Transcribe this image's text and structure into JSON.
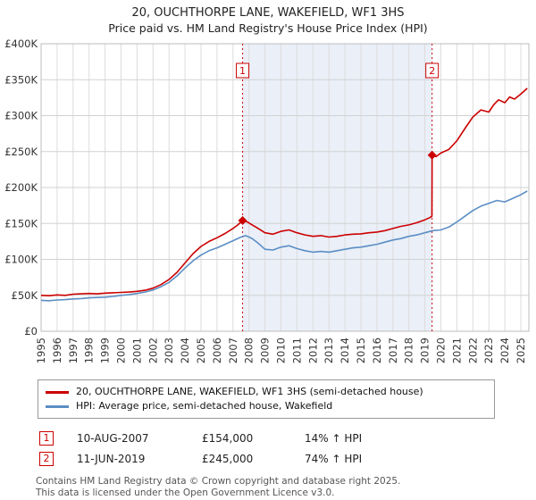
{
  "title": "20, OUCHTHORPE LANE, WAKEFIELD, WF1 3HS",
  "subtitle": "Price paid vs. HM Land Registry's House Price Index (HPI)",
  "chart_data": {
    "type": "line",
    "title": "20, OUCHTHORPE LANE, WAKEFIELD, WF1 3HS — Price paid vs. HPI",
    "x_axis": {
      "min": 1995,
      "max": 2025.5,
      "tick_years": [
        1995,
        1996,
        1997,
        1998,
        1999,
        2000,
        2001,
        2002,
        2003,
        2004,
        2005,
        2006,
        2007,
        2008,
        2009,
        2010,
        2011,
        2012,
        2013,
        2014,
        2015,
        2016,
        2017,
        2018,
        2019,
        2020,
        2021,
        2022,
        2023,
        2024,
        2025
      ]
    },
    "y_axis": {
      "min": 0,
      "max": 400000,
      "tick_step": 50000,
      "tick_labels": [
        "£0",
        "£50K",
        "£100K",
        "£150K",
        "£200K",
        "£250K",
        "£300K",
        "£350K",
        "£400K"
      ]
    },
    "shaded_region": {
      "from": 2007.6,
      "to": 2019.45,
      "color": "#eaeff8"
    },
    "series": [
      {
        "name": "20, OUCHTHORPE LANE, WAKEFIELD, WF1 3HS (semi-detached house)",
        "color": "#cc0000",
        "points": [
          [
            1995.0,
            50000
          ],
          [
            1995.5,
            49500
          ],
          [
            1996.0,
            50500
          ],
          [
            1996.5,
            50000
          ],
          [
            1997.0,
            51500
          ],
          [
            1997.5,
            52000
          ],
          [
            1998.0,
            52500
          ],
          [
            1998.5,
            52000
          ],
          [
            1999.0,
            53000
          ],
          [
            1999.5,
            53500
          ],
          [
            2000.0,
            54000
          ],
          [
            2000.5,
            54500
          ],
          [
            2001.0,
            55500
          ],
          [
            2001.5,
            57000
          ],
          [
            2002.0,
            60000
          ],
          [
            2002.5,
            65000
          ],
          [
            2003.0,
            72000
          ],
          [
            2003.5,
            82000
          ],
          [
            2004.0,
            95000
          ],
          [
            2004.5,
            108000
          ],
          [
            2005.0,
            118000
          ],
          [
            2005.5,
            125000
          ],
          [
            2006.0,
            130000
          ],
          [
            2006.5,
            136000
          ],
          [
            2007.0,
            143000
          ],
          [
            2007.3,
            148000
          ],
          [
            2007.6,
            154000
          ],
          [
            2007.9,
            152000
          ],
          [
            2008.2,
            148000
          ],
          [
            2008.5,
            144000
          ],
          [
            2009.0,
            137000
          ],
          [
            2009.5,
            135000
          ],
          [
            2010.0,
            139000
          ],
          [
            2010.5,
            141000
          ],
          [
            2011.0,
            137000
          ],
          [
            2011.5,
            134000
          ],
          [
            2012.0,
            132000
          ],
          [
            2012.5,
            133000
          ],
          [
            2013.0,
            131000
          ],
          [
            2013.5,
            132000
          ],
          [
            2014.0,
            134000
          ],
          [
            2014.5,
            135000
          ],
          [
            2015.0,
            135500
          ],
          [
            2015.5,
            137000
          ],
          [
            2016.0,
            138000
          ],
          [
            2016.5,
            140000
          ],
          [
            2017.0,
            143000
          ],
          [
            2017.5,
            146000
          ],
          [
            2018.0,
            148000
          ],
          [
            2018.5,
            151000
          ],
          [
            2019.0,
            155000
          ],
          [
            2019.3,
            158000
          ],
          [
            2019.44,
            160000
          ],
          [
            2019.45,
            245000
          ],
          [
            2019.7,
            243000
          ],
          [
            2020.0,
            248000
          ],
          [
            2020.5,
            253000
          ],
          [
            2021.0,
            265000
          ],
          [
            2021.5,
            282000
          ],
          [
            2022.0,
            298000
          ],
          [
            2022.5,
            308000
          ],
          [
            2023.0,
            305000
          ],
          [
            2023.3,
            315000
          ],
          [
            2023.6,
            322000
          ],
          [
            2024.0,
            318000
          ],
          [
            2024.3,
            326000
          ],
          [
            2024.6,
            323000
          ],
          [
            2025.0,
            330000
          ],
          [
            2025.4,
            338000
          ]
        ]
      },
      {
        "name": "HPI: Average price, semi-detached house, Wakefield",
        "color": "#5b8ec4",
        "points": [
          [
            1995.0,
            43000
          ],
          [
            1995.5,
            42500
          ],
          [
            1996.0,
            43500
          ],
          [
            1996.5,
            44000
          ],
          [
            1997.0,
            45000
          ],
          [
            1997.5,
            45500
          ],
          [
            1998.0,
            46500
          ],
          [
            1998.5,
            47000
          ],
          [
            1999.0,
            47500
          ],
          [
            1999.5,
            48500
          ],
          [
            2000.0,
            50000
          ],
          [
            2000.5,
            51000
          ],
          [
            2001.0,
            52500
          ],
          [
            2001.5,
            54500
          ],
          [
            2002.0,
            57500
          ],
          [
            2002.5,
            62000
          ],
          [
            2003.0,
            68000
          ],
          [
            2003.5,
            77000
          ],
          [
            2004.0,
            88000
          ],
          [
            2004.5,
            98000
          ],
          [
            2005.0,
            106000
          ],
          [
            2005.5,
            112000
          ],
          [
            2006.0,
            116000
          ],
          [
            2006.5,
            121000
          ],
          [
            2007.0,
            126000
          ],
          [
            2007.5,
            131000
          ],
          [
            2007.8,
            133000
          ],
          [
            2008.2,
            129000
          ],
          [
            2008.6,
            122000
          ],
          [
            2009.0,
            114000
          ],
          [
            2009.5,
            113000
          ],
          [
            2010.0,
            117000
          ],
          [
            2010.5,
            119000
          ],
          [
            2011.0,
            115000
          ],
          [
            2011.5,
            112000
          ],
          [
            2012.0,
            110000
          ],
          [
            2012.5,
            111000
          ],
          [
            2013.0,
            110000
          ],
          [
            2013.5,
            112000
          ],
          [
            2014.0,
            114000
          ],
          [
            2014.5,
            116000
          ],
          [
            2015.0,
            117000
          ],
          [
            2015.5,
            119000
          ],
          [
            2016.0,
            121000
          ],
          [
            2016.5,
            124000
          ],
          [
            2017.0,
            127000
          ],
          [
            2017.5,
            129000
          ],
          [
            2018.0,
            132000
          ],
          [
            2018.5,
            134000
          ],
          [
            2019.0,
            137000
          ],
          [
            2019.5,
            140000
          ],
          [
            2020.0,
            141000
          ],
          [
            2020.5,
            145000
          ],
          [
            2021.0,
            152000
          ],
          [
            2021.5,
            160000
          ],
          [
            2022.0,
            168000
          ],
          [
            2022.5,
            174000
          ],
          [
            2023.0,
            178000
          ],
          [
            2023.5,
            182000
          ],
          [
            2024.0,
            180000
          ],
          [
            2024.5,
            185000
          ],
          [
            2025.0,
            190000
          ],
          [
            2025.4,
            195000
          ]
        ]
      }
    ],
    "sales": [
      {
        "num": "1",
        "x": 2007.6,
        "y": 154000
      },
      {
        "num": "2",
        "x": 2019.45,
        "y": 245000
      }
    ],
    "legend_position": "bottom",
    "grid": true
  },
  "annotations": [
    {
      "num": "1",
      "date": "10-AUG-2007",
      "price": "£154,000",
      "hpi": "14% ↑ HPI"
    },
    {
      "num": "2",
      "date": "11-JUN-2019",
      "price": "£245,000",
      "hpi": "74% ↑ HPI"
    }
  ],
  "footer": {
    "line1": "Contains HM Land Registry data © Crown copyright and database right 2025.",
    "line2": "This data is licensed under the Open Government Licence v3.0."
  }
}
